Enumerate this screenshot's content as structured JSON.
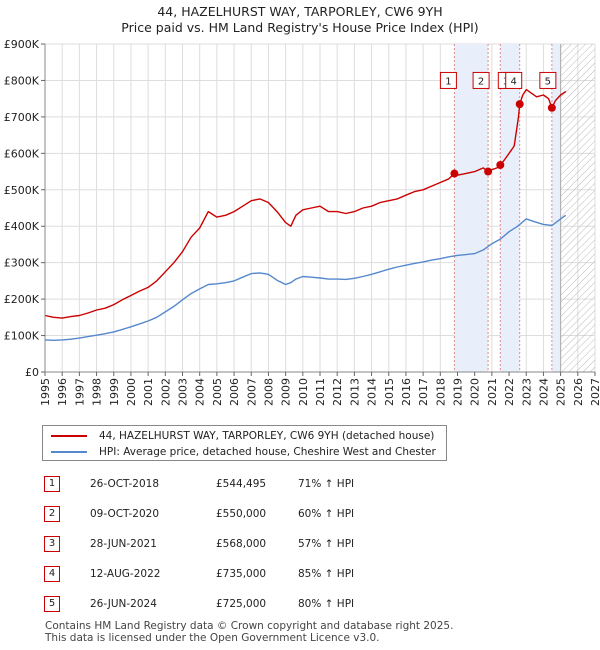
{
  "title_line1": "44, HAZELHURST WAY, TARPORLEY, CW6 9YH",
  "title_line2": "Price paid vs. HM Land Registry's House Price Index (HPI)",
  "legend": {
    "property": "44, HAZELHURST WAY, TARPORLEY, CW6 9YH (detached house)",
    "hpi": "HPI: Average price, detached house, Cheshire West and Chester"
  },
  "colors": {
    "property": "#cc0000",
    "hpi": "#5588cc",
    "highlight": "#e8eefa",
    "marker_line": "#e08888"
  },
  "chart_data": {
    "type": "line",
    "x_range": [
      1995,
      2027
    ],
    "ylim": [
      0,
      900000
    ],
    "x_ticks": [
      "1995",
      "1996",
      "1997",
      "1998",
      "1999",
      "2000",
      "2001",
      "2002",
      "2003",
      "2004",
      "2005",
      "2006",
      "2007",
      "2008",
      "2009",
      "2010",
      "2011",
      "2012",
      "2013",
      "2014",
      "2015",
      "2016",
      "2017",
      "2018",
      "2019",
      "2020",
      "2021",
      "2022",
      "2023",
      "2024",
      "2025",
      "2026",
      "2027"
    ],
    "y_ticks": [
      {
        "value": 0,
        "label": "£0"
      },
      {
        "value": 100000,
        "label": "£100K"
      },
      {
        "value": 200000,
        "label": "£200K"
      },
      {
        "value": 300000,
        "label": "£300K"
      },
      {
        "value": 400000,
        "label": "£400K"
      },
      {
        "value": 500000,
        "label": "£500K"
      },
      {
        "value": 600000,
        "label": "£600K"
      },
      {
        "value": 700000,
        "label": "£700K"
      },
      {
        "value": 800000,
        "label": "£800K"
      },
      {
        "value": 900000,
        "label": "£900K"
      }
    ],
    "forecast_start": 2025.0,
    "highlight_spans": [
      [
        2018.82,
        2020.78
      ],
      [
        2021.49,
        2022.62
      ],
      [
        2024.49,
        2025.0
      ]
    ],
    "series": [
      {
        "name": "44, HAZELHURST WAY, TARPORLEY, CW6 9YH (detached house)",
        "x": [
          1995.0,
          1995.5,
          1996.0,
          1996.5,
          1997.0,
          1997.5,
          1998.0,
          1998.5,
          1999.0,
          1999.5,
          2000.0,
          2000.5,
          2001.0,
          2001.5,
          2002.0,
          2002.5,
          2003.0,
          2003.5,
          2004.0,
          2004.5,
          2005.0,
          2005.5,
          2006.0,
          2006.5,
          2007.0,
          2007.5,
          2008.0,
          2008.5,
          2009.0,
          2009.3,
          2009.6,
          2010.0,
          2010.5,
          2011.0,
          2011.5,
          2012.0,
          2012.5,
          2013.0,
          2013.5,
          2014.0,
          2014.5,
          2015.0,
          2015.5,
          2016.0,
          2016.5,
          2017.0,
          2017.5,
          2018.0,
          2018.5,
          2018.82,
          2019.0,
          2019.5,
          2020.0,
          2020.5,
          2020.78,
          2021.0,
          2021.3,
          2021.49,
          2021.7,
          2022.0,
          2022.3,
          2022.55,
          2022.62,
          2022.8,
          2023.0,
          2023.3,
          2023.6,
          2024.0,
          2024.3,
          2024.49,
          2024.7,
          2025.0,
          2025.3
        ],
        "y": [
          155000,
          150000,
          148000,
          152000,
          155000,
          162000,
          170000,
          175000,
          185000,
          198000,
          210000,
          222000,
          232000,
          250000,
          275000,
          300000,
          330000,
          370000,
          395000,
          440000,
          425000,
          430000,
          440000,
          455000,
          470000,
          475000,
          465000,
          440000,
          410000,
          400000,
          430000,
          445000,
          450000,
          455000,
          440000,
          440000,
          435000,
          440000,
          450000,
          455000,
          465000,
          470000,
          475000,
          485000,
          495000,
          500000,
          510000,
          520000,
          530000,
          544495,
          540000,
          545000,
          550000,
          560000,
          550000,
          555000,
          560000,
          568000,
          580000,
          600000,
          620000,
          700000,
          735000,
          760000,
          775000,
          765000,
          755000,
          760000,
          750000,
          725000,
          745000,
          760000,
          770000
        ]
      },
      {
        "name": "HPI: Average price, detached house, Cheshire West and Chester",
        "x": [
          1995.0,
          1995.5,
          1996.0,
          1996.5,
          1997.0,
          1997.5,
          1998.0,
          1998.5,
          1999.0,
          1999.5,
          2000.0,
          2000.5,
          2001.0,
          2001.5,
          2002.0,
          2002.5,
          2003.0,
          2003.5,
          2004.0,
          2004.5,
          2005.0,
          2005.5,
          2006.0,
          2006.5,
          2007.0,
          2007.5,
          2008.0,
          2008.5,
          2009.0,
          2009.3,
          2009.6,
          2010.0,
          2010.5,
          2011.0,
          2011.5,
          2012.0,
          2012.5,
          2013.0,
          2013.5,
          2014.0,
          2014.5,
          2015.0,
          2015.5,
          2016.0,
          2016.5,
          2017.0,
          2017.5,
          2018.0,
          2018.5,
          2019.0,
          2019.5,
          2020.0,
          2020.5,
          2021.0,
          2021.5,
          2022.0,
          2022.5,
          2023.0,
          2023.5,
          2024.0,
          2024.5,
          2025.0,
          2025.3
        ],
        "y": [
          88000,
          87000,
          88000,
          90000,
          93000,
          97000,
          101000,
          105000,
          110000,
          117000,
          124000,
          132000,
          140000,
          150000,
          165000,
          180000,
          198000,
          215000,
          228000,
          240000,
          242000,
          245000,
          250000,
          260000,
          270000,
          272000,
          268000,
          252000,
          240000,
          245000,
          255000,
          262000,
          260000,
          258000,
          255000,
          255000,
          254000,
          257000,
          262000,
          268000,
          275000,
          282000,
          288000,
          293000,
          298000,
          302000,
          307000,
          311000,
          316000,
          320000,
          322000,
          325000,
          335000,
          352000,
          365000,
          385000,
          400000,
          420000,
          412000,
          405000,
          402000,
          420000,
          430000
        ]
      }
    ],
    "sales": [
      {
        "n": "1",
        "date": "26-OCT-2018",
        "x": 2018.82,
        "price": 544495,
        "price_label": "£544,495",
        "delta": "71% ↑ HPI"
      },
      {
        "n": "2",
        "date": "09-OCT-2020",
        "x": 2020.78,
        "price": 550000,
        "price_label": "£550,000",
        "delta": "60% ↑ HPI"
      },
      {
        "n": "3",
        "date": "28-JUN-2021",
        "x": 2021.49,
        "price": 568000,
        "price_label": "£568,000",
        "delta": "57% ↑ HPI"
      },
      {
        "n": "4",
        "date": "12-AUG-2022",
        "x": 2022.62,
        "price": 735000,
        "price_label": "£735,000",
        "delta": "85% ↑ HPI"
      },
      {
        "n": "5",
        "date": "26-JUN-2024",
        "x": 2024.49,
        "price": 725000,
        "price_label": "£725,000",
        "delta": "80% ↑ HPI"
      }
    ]
  },
  "footer_line1": "Contains HM Land Registry data © Crown copyright and database right 2025.",
  "footer_line2": "This data is licensed under the Open Government Licence v3.0."
}
